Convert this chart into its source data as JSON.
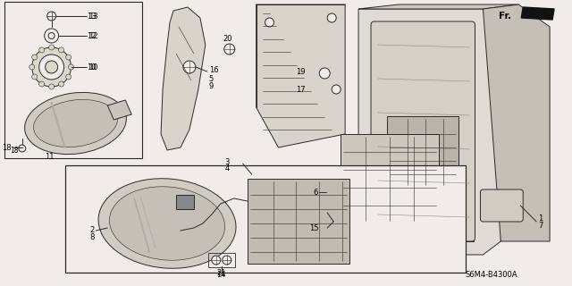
{
  "bg_color": "#f0ede8",
  "line_color": "#2a2a2a",
  "text_color": "#000000",
  "fig_width": 6.4,
  "fig_height": 3.2,
  "diagram_code": "S6M4-B4300A"
}
